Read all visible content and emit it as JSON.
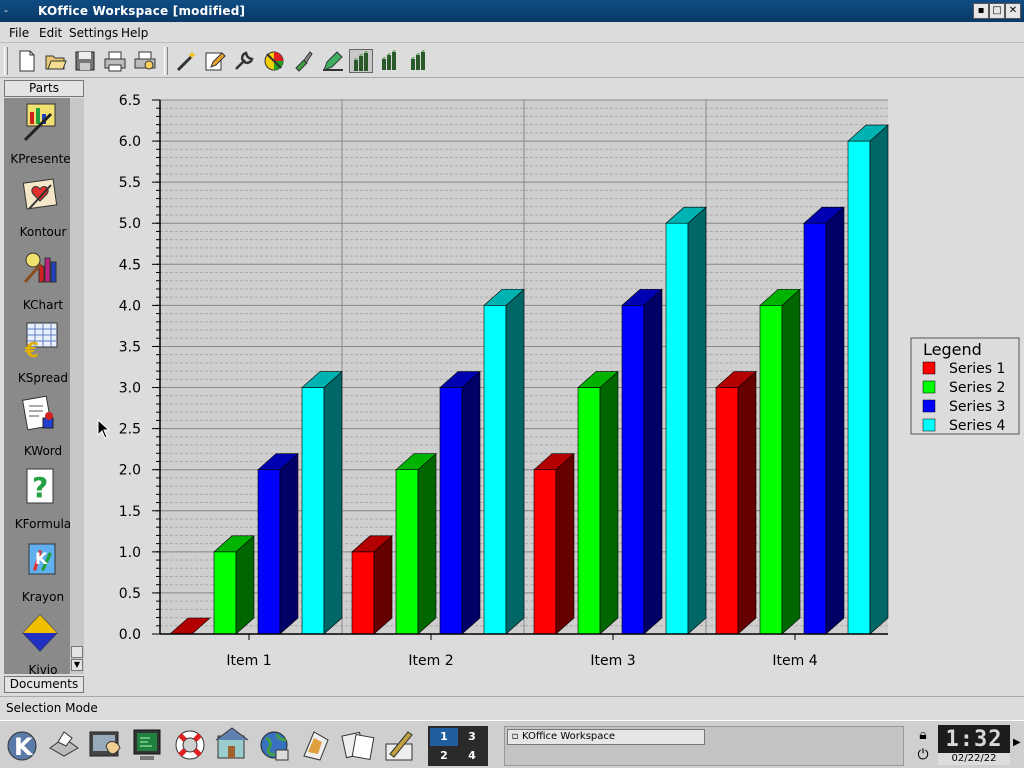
{
  "window": {
    "title": "KOffice Workspace [modified]",
    "app_icon": "-=*=-",
    "controls": [
      "minimize",
      "maximize",
      "close"
    ]
  },
  "menu": [
    "File",
    "Edit",
    "Settings",
    "Help"
  ],
  "toolbar": {
    "buttons": [
      {
        "name": "new-document",
        "icon": "new-document-icon"
      },
      {
        "name": "open",
        "icon": "folder-open-icon"
      },
      {
        "name": "save",
        "icon": "floppy-disk-icon"
      },
      {
        "name": "print",
        "icon": "printer-icon"
      },
      {
        "name": "print-preview",
        "icon": "printer-preview-icon"
      },
      {
        "name": "wizard",
        "icon": "magic-wand-icon"
      },
      {
        "name": "edit",
        "icon": "pencil-icon"
      },
      {
        "name": "settings",
        "icon": "wrench-icon"
      },
      {
        "name": "colors",
        "icon": "color-wheel-icon"
      },
      {
        "name": "fill",
        "icon": "paint-brush-icon"
      },
      {
        "name": "pen",
        "icon": "pen-icon"
      },
      {
        "name": "chart-type-1",
        "icon": "chart-3d-icon",
        "active": true
      },
      {
        "name": "chart-type-2",
        "icon": "chart-3d-icon"
      },
      {
        "name": "chart-type-3",
        "icon": "chart-3d-icon"
      }
    ]
  },
  "parts": {
    "header": "Parts",
    "items": [
      {
        "label": "KPresenter",
        "icon": "kpresenter-icon"
      },
      {
        "label": "Kontour",
        "icon": "kontour-icon"
      },
      {
        "label": "KChart",
        "icon": "kchart-icon"
      },
      {
        "label": "KSpread",
        "icon": "kspread-icon"
      },
      {
        "label": "KWord",
        "icon": "kword-icon"
      },
      {
        "label": "KFormula",
        "icon": "kformula-icon"
      },
      {
        "label": "Krayon",
        "icon": "krayon-icon"
      },
      {
        "label": "Kivio",
        "icon": "kivio-icon"
      }
    ],
    "documents_header": "Documents"
  },
  "chart_data": {
    "type": "bar",
    "style": "3d",
    "categories": [
      "Item 1",
      "Item 2",
      "Item 3",
      "Item 4"
    ],
    "series": [
      {
        "name": "Series 1",
        "color": "#ff0000",
        "values": [
          0,
          1,
          2,
          3
        ]
      },
      {
        "name": "Series 2",
        "color": "#00ff00",
        "values": [
          1,
          2,
          3,
          4
        ]
      },
      {
        "name": "Series 3",
        "color": "#0000ff",
        "values": [
          2,
          3,
          4,
          5
        ]
      },
      {
        "name": "Series 4",
        "color": "#00ffff",
        "values": [
          3,
          4,
          5,
          6
        ]
      }
    ],
    "ylim": [
      0,
      6.5
    ],
    "yticks": [
      "0.0",
      "0.5",
      "1.0",
      "1.5",
      "2.0",
      "2.5",
      "3.0",
      "3.5",
      "4.0",
      "4.5",
      "5.0",
      "5.5",
      "6.0",
      "6.5"
    ],
    "legend": {
      "title": "Legend",
      "position": "right"
    },
    "grid": true
  },
  "status": {
    "text": "Selection Mode"
  },
  "panel": {
    "launchers": [
      "k-menu-icon",
      "printer-icon",
      "terminal-icon",
      "monitor-icon",
      "help-lifebuoy-icon",
      "home-icon",
      "globe-icon",
      "office-icon",
      "notes-icon",
      "pen-icon"
    ],
    "desktops": [
      "1",
      "3",
      "2",
      "4"
    ],
    "task": "KOffice Workspace",
    "clock": {
      "time": "1:32",
      "date": "02/22/22"
    }
  }
}
